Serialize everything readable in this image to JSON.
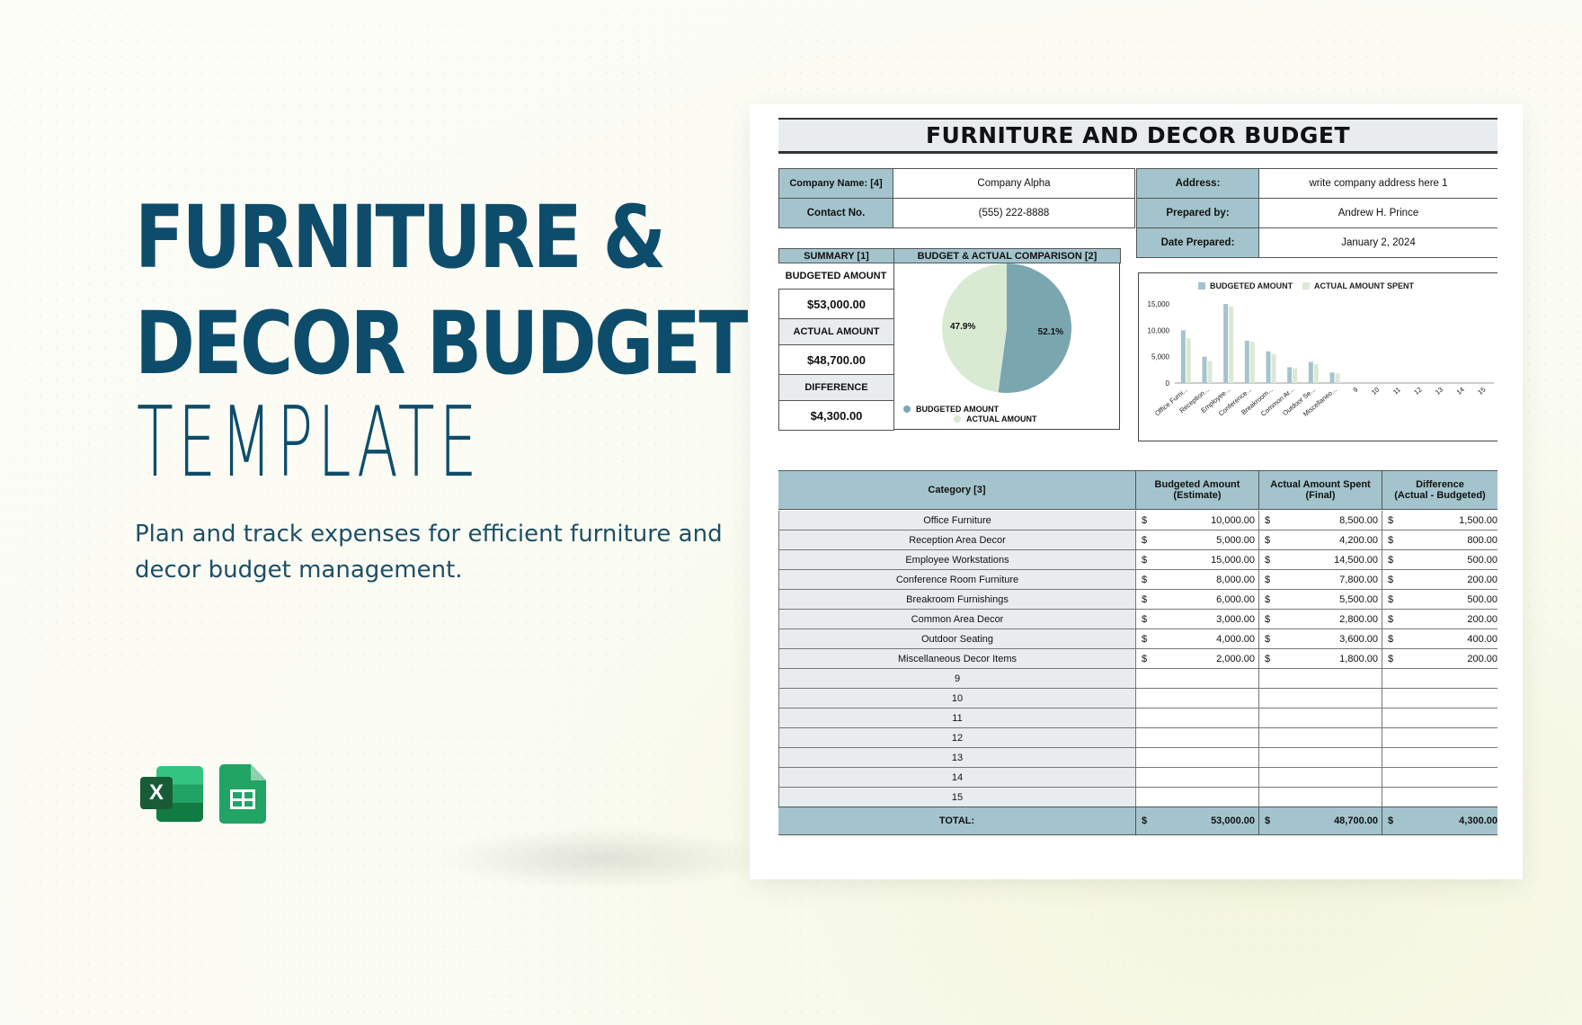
{
  "hero": {
    "title_line1": "FURNITURE &",
    "title_line2": "DECOR BUDGET",
    "subtitle": "TEMPLATE",
    "description": "Plan and track expenses for efficient furniture and decor budget management."
  },
  "apps": {
    "excel_label": "X"
  },
  "sheet": {
    "title": "FURNITURE AND DECOR BUDGET",
    "company_name_label": "Company Name: [4]",
    "company_name": "Company Alpha",
    "contact_label": "Contact No.",
    "contact": "(555) 222-8888",
    "address_label": "Address:",
    "address": "write company address here 1",
    "prepared_by_label": "Prepared by:",
    "prepared_by": "Andrew H. Prince",
    "date_label": "Date Prepared:",
    "date": "January 2, 2024",
    "summary_header": "SUMMARY [1]",
    "comparison_header": "BUDGET & ACTUAL COMPARISON [2]",
    "budgeted_label": "BUDGETED AMOUNT",
    "budgeted_value": "$53,000.00",
    "actual_label": "ACTUAL AMOUNT",
    "actual_value": "$48,700.00",
    "difference_label": "DIFFERENCE",
    "difference_value": "$4,300.00",
    "table_headers": {
      "category": "Category [3]",
      "budgeted": "Budgeted Amount",
      "budgeted_sub": "(Estimate)",
      "actual": "Actual Amount Spent",
      "actual_sub": "(Final)",
      "difference": "Difference",
      "difference_sub": "(Actual - Budgeted)"
    },
    "currency": "$",
    "rows": [
      {
        "category": "Office Furniture",
        "budgeted": "10,000.00",
        "actual": "8,500.00",
        "difference": "1,500.00"
      },
      {
        "category": "Reception Area Decor",
        "budgeted": "5,000.00",
        "actual": "4,200.00",
        "difference": "800.00"
      },
      {
        "category": "Employee Workstations",
        "budgeted": "15,000.00",
        "actual": "14,500.00",
        "difference": "500.00"
      },
      {
        "category": "Conference Room Furniture",
        "budgeted": "8,000.00",
        "actual": "7,800.00",
        "difference": "200.00"
      },
      {
        "category": "Breakroom Furnishings",
        "budgeted": "6,000.00",
        "actual": "5,500.00",
        "difference": "500.00"
      },
      {
        "category": "Common Area Decor",
        "budgeted": "3,000.00",
        "actual": "2,800.00",
        "difference": "200.00"
      },
      {
        "category": "Outdoor Seating",
        "budgeted": "4,000.00",
        "actual": "3,600.00",
        "difference": "400.00"
      },
      {
        "category": "Miscellaneous Decor Items",
        "budgeted": "2,000.00",
        "actual": "1,800.00",
        "difference": "200.00"
      },
      {
        "category": "9",
        "budgeted": "",
        "actual": "",
        "difference": ""
      },
      {
        "category": "10",
        "budgeted": "",
        "actual": "",
        "difference": ""
      },
      {
        "category": "11",
        "budgeted": "",
        "actual": "",
        "difference": ""
      },
      {
        "category": "12",
        "budgeted": "",
        "actual": "",
        "difference": ""
      },
      {
        "category": "13",
        "budgeted": "",
        "actual": "",
        "difference": ""
      },
      {
        "category": "14",
        "budgeted": "",
        "actual": "",
        "difference": ""
      },
      {
        "category": "15",
        "budgeted": "",
        "actual": "",
        "difference": ""
      }
    ],
    "total_label": "TOTAL:",
    "total_budgeted": "53,000.00",
    "total_actual": "48,700.00",
    "total_difference": "4,300.00"
  },
  "colors": {
    "brand": "#0d4d6b",
    "header_fill": "#a3c4cc",
    "budget_series": "#a3c4cc",
    "actual_series": "#dbe8d6",
    "pie_budget": "#7aa6b0",
    "pie_actual": "#d9ead3"
  },
  "chart_data": [
    {
      "type": "pie",
      "labels": [
        "BUDGETED AMOUNT",
        "ACTUAL AMOUNT"
      ],
      "values": [
        52.1,
        47.9
      ],
      "data_labels": [
        "52.1%",
        "47.9%"
      ],
      "legend": "bottom"
    },
    {
      "type": "bar",
      "categories": [
        "Office Furni...",
        "Reception...",
        "Employee...",
        "Conference...",
        "Breakroom...",
        "Common Ar...",
        "Outdoor Se...",
        "Miscellaneo...",
        "9",
        "10",
        "11",
        "12",
        "13",
        "14",
        "15"
      ],
      "series": [
        {
          "name": "BUDGETED AMOUNT",
          "values": [
            10000,
            5000,
            15000,
            8000,
            6000,
            3000,
            4000,
            2000,
            0,
            0,
            0,
            0,
            0,
            0,
            0
          ]
        },
        {
          "name": "ACTUAL AMOUNT SPENT",
          "values": [
            8500,
            4200,
            14500,
            7800,
            5500,
            2800,
            3600,
            1800,
            0,
            0,
            0,
            0,
            0,
            0,
            0
          ]
        }
      ],
      "yticks": [
        "0",
        "5,000",
        "10,000",
        "15,000"
      ],
      "ylim": [
        0,
        15000
      ],
      "legend": "top",
      "grid": false
    }
  ]
}
